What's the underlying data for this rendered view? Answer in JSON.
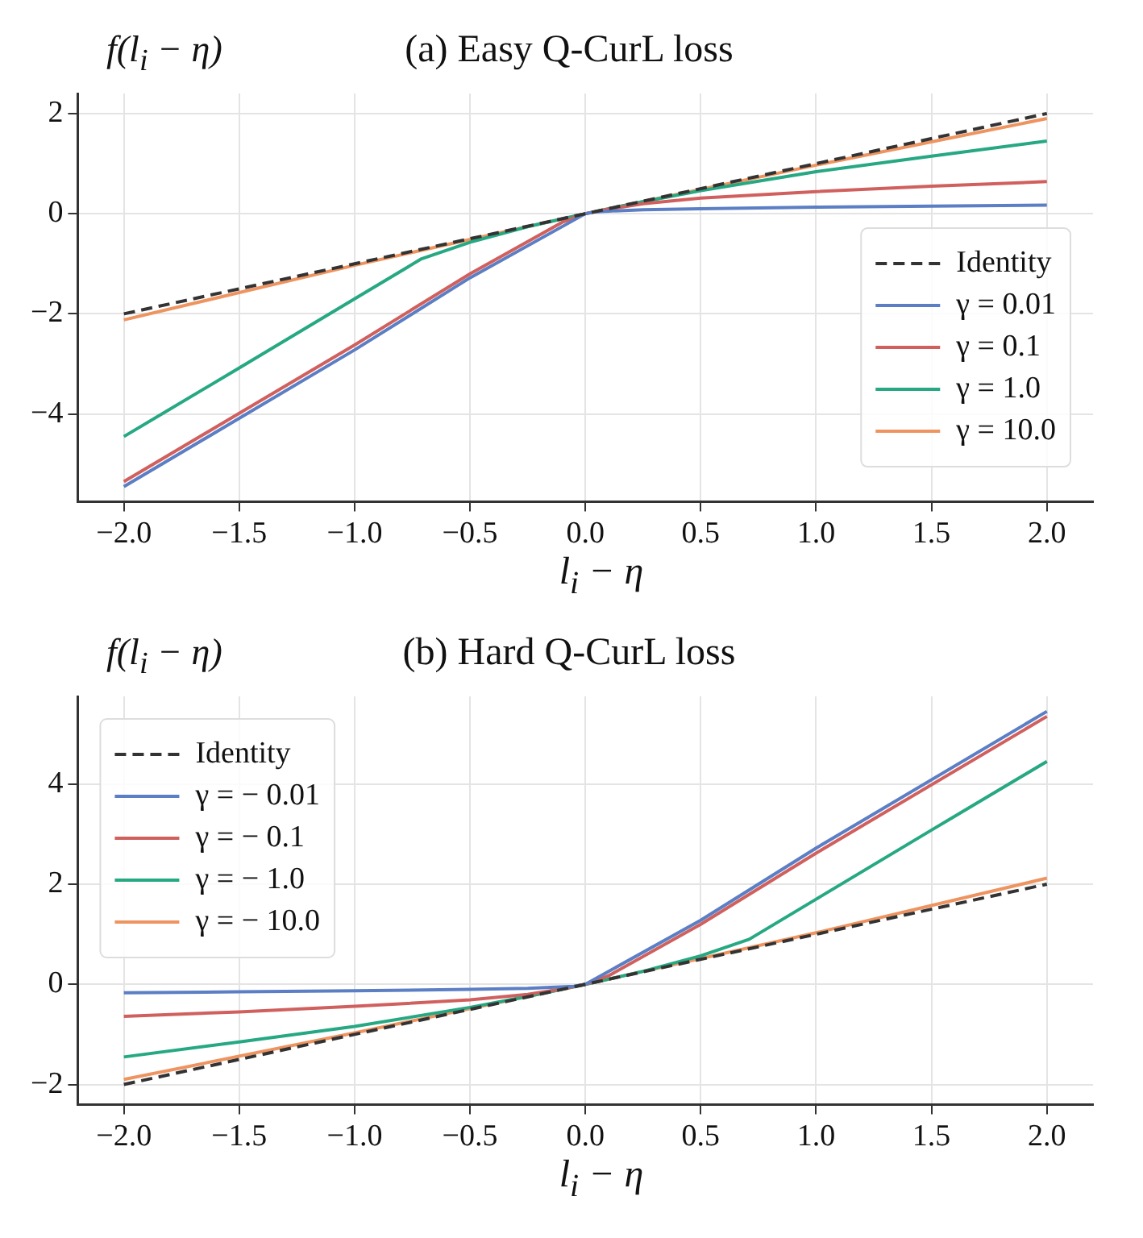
{
  "chart_data": [
    {
      "type": "line",
      "title": "(a) Easy Q-CurL loss",
      "xlabel": "l$_{i}$ − η",
      "ylabel": "f(l$_{i}$ − η)",
      "xlim": [
        -2.2,
        2.2
      ],
      "ylim": [
        -5.75,
        2.4
      ],
      "xticks": [
        {
          "value": -2,
          "label": "−2.0"
        },
        {
          "value": -1.5,
          "label": "−1.5"
        },
        {
          "value": -1,
          "label": "−1.0"
        },
        {
          "value": -0.5,
          "label": "−0.5"
        },
        {
          "value": 0,
          "label": "0.0"
        },
        {
          "value": 0.5,
          "label": "0.5"
        },
        {
          "value": 1,
          "label": "1.0"
        },
        {
          "value": 1.5,
          "label": "1.5"
        },
        {
          "value": 2,
          "label": "2.0"
        }
      ],
      "yticks": [
        -4,
        -2,
        0,
        2
      ],
      "grid": true,
      "legend": "right",
      "series": [
        {
          "name": "Identity",
          "color": "#333333",
          "line_style": "dashed",
          "x": [
            -2,
            2
          ],
          "values": [
            -2,
            2
          ]
        },
        {
          "name": "γ = 0.01",
          "color": "#5b7ec4",
          "line_style": "solid",
          "x": [
            -2,
            -1,
            -0.5,
            0,
            0.05,
            0.25,
            0.5,
            1,
            1.5,
            2
          ],
          "values": [
            -5.45,
            -2.72,
            -1.28,
            0,
            0.04,
            0.08,
            0.1,
            0.13,
            0.15,
            0.17
          ]
        },
        {
          "name": "γ = 0.1",
          "color": "#d0605e",
          "line_style": "solid",
          "x": [
            -2,
            -1,
            -0.5,
            -0.1,
            0,
            0.1,
            0.25,
            0.5,
            1,
            1.5,
            2
          ],
          "values": [
            -5.35,
            -2.62,
            -1.2,
            -0.17,
            0,
            0.09,
            0.2,
            0.31,
            0.44,
            0.55,
            0.64
          ]
        },
        {
          "name": "γ = 1.0",
          "color": "#26a883",
          "line_style": "solid",
          "x": [
            -2,
            -1.5,
            -1,
            -0.71,
            -0.5,
            -0.25,
            0,
            0.25,
            0.5,
            1,
            1.5,
            2
          ],
          "values": [
            -4.45,
            -3.08,
            -1.7,
            -0.9,
            -0.57,
            -0.26,
            0,
            0.24,
            0.46,
            0.84,
            1.15,
            1.45
          ]
        },
        {
          "name": "γ = 10.0",
          "color": "#ee9460",
          "line_style": "solid",
          "x": [
            -2,
            -1,
            0,
            1,
            2
          ],
          "values": [
            -2.12,
            -1.03,
            0,
            0.97,
            1.9
          ]
        }
      ]
    },
    {
      "type": "line",
      "title": "(b) Hard Q-CurL loss",
      "xlabel": "l$_{i}$ − η",
      "ylabel": "f(l$_{i}$ − η)",
      "xlim": [
        -2.2,
        2.2
      ],
      "ylim": [
        -2.4,
        5.75
      ],
      "xticks": [
        {
          "value": -2,
          "label": "−2.0"
        },
        {
          "value": -1.5,
          "label": "−1.5"
        },
        {
          "value": -1,
          "label": "−1.0"
        },
        {
          "value": -0.5,
          "label": "−0.5"
        },
        {
          "value": 0,
          "label": "0.0"
        },
        {
          "value": 0.5,
          "label": "0.5"
        },
        {
          "value": 1,
          "label": "1.0"
        },
        {
          "value": 1.5,
          "label": "1.5"
        },
        {
          "value": 2,
          "label": "2.0"
        }
      ],
      "yticks": [
        -2,
        0,
        2,
        4
      ],
      "grid": true,
      "legend": "top left",
      "series": [
        {
          "name": "Identity",
          "color": "#333333",
          "line_style": "dashed",
          "x": [
            -2,
            2
          ],
          "values": [
            -2,
            2
          ]
        },
        {
          "name": "γ = − 0.01",
          "color": "#5b7ec4",
          "line_style": "solid",
          "x": [
            -2,
            -1.5,
            -1,
            -0.5,
            -0.25,
            -0.05,
            0,
            0.5,
            1,
            2
          ],
          "values": [
            -0.17,
            -0.15,
            -0.13,
            -0.1,
            -0.08,
            -0.04,
            0,
            1.28,
            2.72,
            5.45
          ]
        },
        {
          "name": "γ = − 0.1",
          "color": "#d0605e",
          "line_style": "solid",
          "x": [
            -2,
            -1.5,
            -1,
            -0.5,
            -0.25,
            -0.1,
            0,
            0.1,
            0.5,
            1,
            2
          ],
          "values": [
            -0.64,
            -0.55,
            -0.44,
            -0.31,
            -0.2,
            -0.09,
            0,
            0.17,
            1.2,
            2.62,
            5.35
          ]
        },
        {
          "name": "γ = − 1.0",
          "color": "#26a883",
          "line_style": "solid",
          "x": [
            -2,
            -1.5,
            -1,
            -0.5,
            -0.25,
            0,
            0.25,
            0.5,
            0.71,
            1,
            1.5,
            2
          ],
          "values": [
            -1.45,
            -1.15,
            -0.84,
            -0.46,
            -0.24,
            0,
            0.26,
            0.57,
            0.9,
            1.7,
            3.08,
            4.45
          ]
        },
        {
          "name": "γ = − 10.0",
          "color": "#ee9460",
          "line_style": "solid",
          "x": [
            -2,
            -1,
            0,
            1,
            2
          ],
          "values": [
            -1.9,
            -0.97,
            0,
            1.03,
            2.12
          ]
        }
      ]
    }
  ]
}
